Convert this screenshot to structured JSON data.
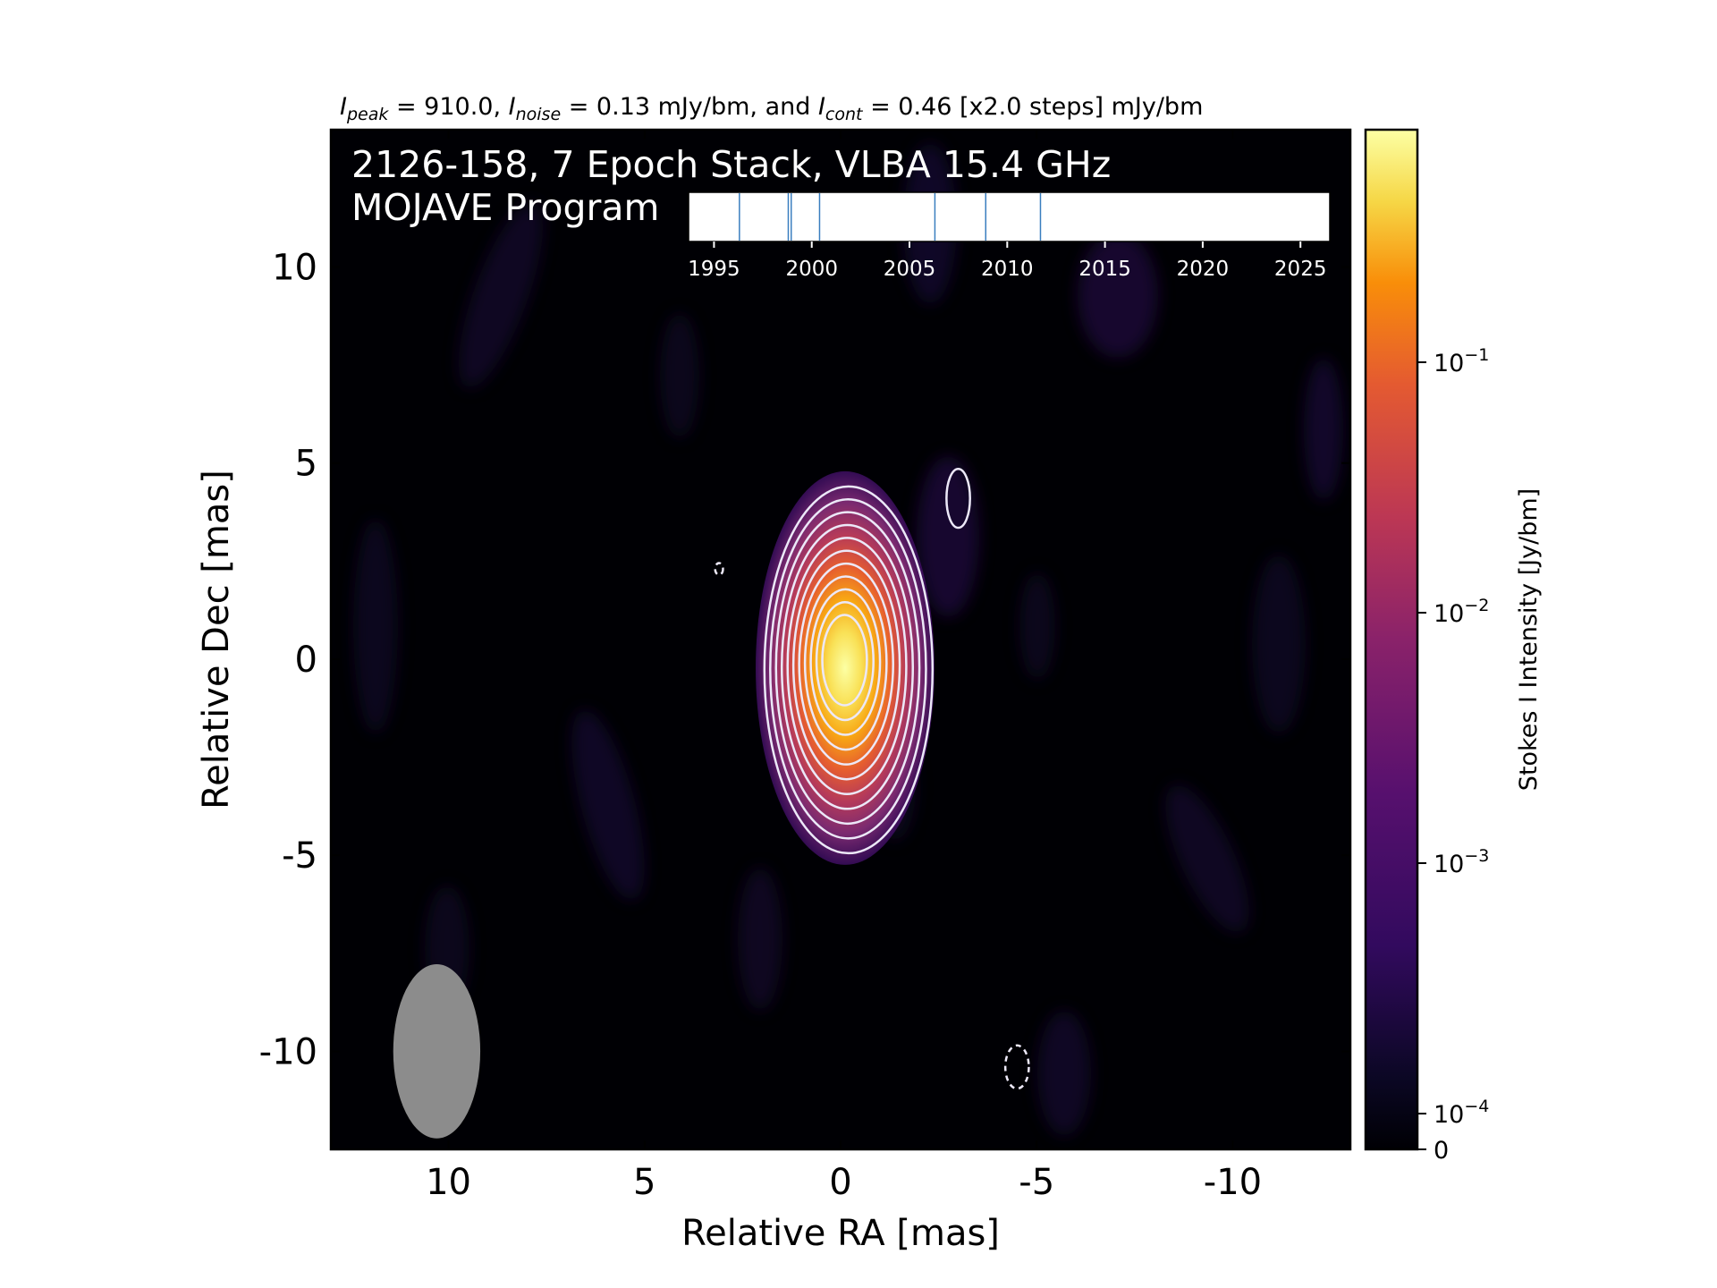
{
  "chart_data": {
    "type": "heatmap",
    "title_parts": {
      "peak_symbol": "I",
      "peak_sub": "peak",
      "peak_value": " = 910.0, ",
      "noise_symbol": "I",
      "noise_sub": "noise",
      "noise_value": " = 0.13 mJy/bm, and ",
      "cont_symbol": "I",
      "cont_sub": "cont",
      "cont_value": " = 0.46 [x2.0 steps] mJy/bm"
    },
    "annotation_line1": "2126-158, 7 Epoch Stack, VLBA 15.4 GHz",
    "annotation_line2": "MOJAVE Program",
    "xlabel": "Relative RA [mas]",
    "ylabel": "Relative Dec [mas]",
    "xlim": [
      13,
      -13
    ],
    "ylim": [
      -12.5,
      13.5
    ],
    "x_ticks": [
      10,
      5,
      0,
      -5,
      -10
    ],
    "x_tick_labels": [
      "10",
      "5",
      "0",
      "-5",
      "-10"
    ],
    "y_ticks": [
      10,
      5,
      0,
      -5,
      -10
    ],
    "y_tick_labels": [
      "10",
      "5",
      "0",
      "-5",
      "-10"
    ],
    "colorbar": {
      "label": "Stokes I Intensity [Jy/bm]",
      "scale": "log",
      "colormap": "inferno",
      "ticks": [
        {
          "base": "10",
          "exp": "−1",
          "value": 0.1
        },
        {
          "base": "10",
          "exp": "−2",
          "value": 0.01
        },
        {
          "base": "10",
          "exp": "−3",
          "value": 0.001
        },
        {
          "base": "10",
          "exp": "−4",
          "value": 0.0001
        },
        {
          "base": "0",
          "exp": "",
          "value": 0
        }
      ]
    },
    "peak_jy_per_beam": 0.91,
    "core_position_mas": [
      0,
      0
    ],
    "contour_levels_mjy": [
      0.46,
      0.92,
      1.84,
      3.68,
      7.36,
      14.72,
      29.44,
      58.88,
      117.76,
      235.52,
      471.04
    ],
    "beam": {
      "ra": 10.3,
      "dec": -10.0,
      "major_mas": 2.4,
      "minor_mas": 1.2,
      "pa_deg": 0
    },
    "extra_contours": [
      {
        "ra": -3.0,
        "dec": 4.1,
        "rx_mas": 0.3,
        "ry_mas": 0.75,
        "dashed": false
      },
      {
        "ra": 3.1,
        "dec": 2.3,
        "rx_mas": 0.1,
        "ry_mas": 0.15,
        "dashed": true
      },
      {
        "ra": -4.5,
        "dec": -10.4,
        "rx_mas": 0.3,
        "ry_mas": 0.55,
        "dashed": true
      }
    ],
    "epoch_timeline": {
      "xlim": [
        1993.7,
        2026.5
      ],
      "tick_labels": [
        "1995",
        "2000",
        "2005",
        "2010",
        "2015",
        "2020",
        "2025"
      ],
      "tick_values": [
        1995,
        2000,
        2005,
        2010,
        2015,
        2020,
        2025
      ],
      "epochs": [
        1996.3,
        1998.8,
        1998.95,
        2000.4,
        2006.3,
        2008.9,
        2011.7
      ]
    }
  },
  "colors": {
    "background": "#000004",
    "contour": "#ece8f8",
    "epoch_line": "#3a7ebf",
    "beam": "#8c8c8c",
    "annotation_text": "#ffffff"
  }
}
